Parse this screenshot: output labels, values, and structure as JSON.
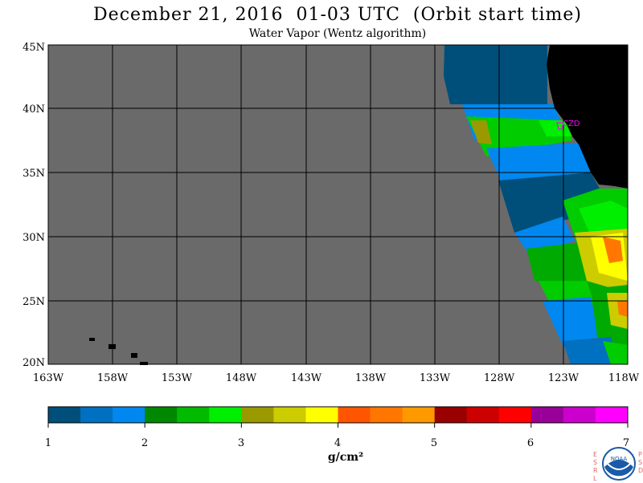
{
  "header": {
    "title": "December 21, 2016  01-03 UTC  (Orbit start time)",
    "subtitle": "Water Vapor (Wentz algorithm)"
  },
  "map": {
    "lat_labels": [
      "45N",
      "40N",
      "35N",
      "30N",
      "25N",
      "20N"
    ],
    "lon_labels": [
      "163W",
      "158W",
      "153W",
      "148W",
      "143W",
      "138W",
      "133W",
      "128W",
      "123W",
      "118W"
    ],
    "place_label": "CZD",
    "colors": {
      "no_data": "#6a6a6a",
      "land": "#000000",
      "grid": "#000000",
      "place_marker": "#ff00ff"
    }
  },
  "colorbar": {
    "tick_labels": [
      "1",
      "2",
      "3",
      "4",
      "5",
      "6",
      "7"
    ],
    "units": "g/cm²",
    "colors": [
      "#004f7a",
      "#0070c0",
      "#0088f0",
      "#008800",
      "#00bb00",
      "#00ee00",
      "#9a9a00",
      "#cccc00",
      "#ffff00",
      "#ff5500",
      "#ff7700",
      "#ff9900",
      "#990000",
      "#cc0000",
      "#ff0000",
      "#990099",
      "#cc00cc",
      "#ff00ff"
    ]
  },
  "logo": {
    "left_letters": [
      "E",
      "S",
      "R",
      "L"
    ],
    "center_text": "NOAA",
    "right_letters": [
      "P",
      "S",
      "D"
    ]
  }
}
